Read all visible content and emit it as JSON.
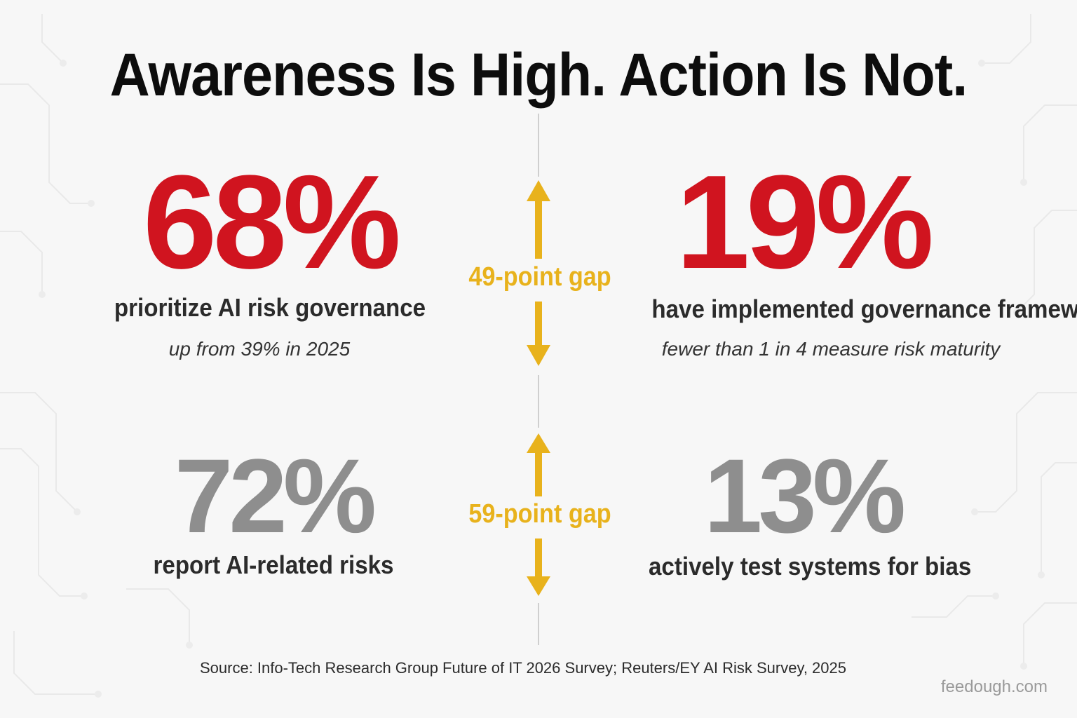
{
  "title": "Awareness Is High. Action Is Not.",
  "rows": [
    {
      "left": {
        "value": "68%",
        "description": "prioritize AI risk governance",
        "note": "up from 39% in 2025"
      },
      "gap": "49-point gap",
      "right": {
        "value": "19%",
        "description": "have implemented governance frameworks",
        "note": "fewer than 1 in 4 measure risk maturity"
      }
    },
    {
      "left": {
        "value": "72%",
        "description": "report AI-related risks"
      },
      "gap": "59-point gap",
      "right": {
        "value": "13%",
        "description": "actively test systems for bias"
      }
    }
  ],
  "source": "Source: Info-Tech Research Group Future of IT 2026 Survey; Reuters/EY AI Risk Survey, 2025",
  "brand": "feedough.com",
  "colors": {
    "highlight_red": "#d0141f",
    "muted_grey": "#8e8e8e",
    "gap_yellow": "#e8b21c",
    "title_black": "#0d0d0d"
  }
}
